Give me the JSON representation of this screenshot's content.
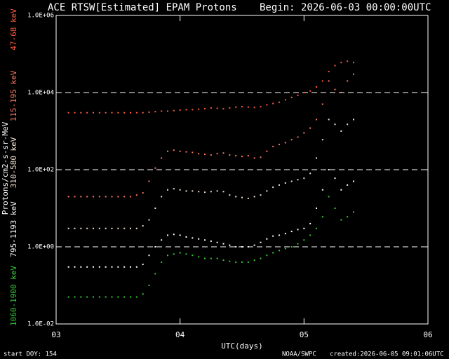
{
  "chart_data": {
    "type": "scatter",
    "title": "ACE RTSW[Estimated] EPAM Protons",
    "subtitle": "Begin: 2026-06-03 00:00:00UTC",
    "x_label": "UTC(days)",
    "y_label": "Protons/cm2-s-sr-MeV",
    "footer_left": "start DOY:  154",
    "footer_mid": "NOAA/SWPC",
    "footer_right": "created:2026-06-05 09:01:06UTC",
    "log_y": true,
    "grid": "dashed",
    "xlim": [
      3,
      6
    ],
    "xticks": [
      {
        "value": 3,
        "label": "03"
      },
      {
        "value": 4,
        "label": "04"
      },
      {
        "value": 5,
        "label": "05"
      },
      {
        "value": 6,
        "label": "06"
      }
    ],
    "ylim": [
      0.01,
      1000000
    ],
    "yticks": [
      {
        "value": 0.01,
        "label": "1.0E-02"
      },
      {
        "value": 1,
        "label": "1.0E+00"
      },
      {
        "value": 100,
        "label": "1.0E+02"
      },
      {
        "value": 10000,
        "label": "1.0E+04"
      },
      {
        "value": 1000000,
        "label": "1.0E+06"
      }
    ],
    "x": [
      3.1,
      3.15,
      3.2,
      3.25,
      3.3,
      3.35,
      3.4,
      3.45,
      3.5,
      3.55,
      3.6,
      3.65,
      3.7,
      3.75,
      3.8,
      3.85,
      3.9,
      3.95,
      4.0,
      4.05,
      4.1,
      4.15,
      4.2,
      4.25,
      4.3,
      4.35,
      4.4,
      4.45,
      4.5,
      4.55,
      4.6,
      4.65,
      4.7,
      4.75,
      4.8,
      4.85,
      4.9,
      4.95,
      5.0,
      5.05,
      5.1,
      5.15,
      5.2,
      5.25,
      5.3,
      5.35,
      5.4
    ],
    "series": [
      {
        "name": "47-68 keV",
        "color": "#ff5a3c",
        "values": [
          3000,
          3000,
          3000,
          3000,
          3000,
          3000,
          3000,
          3000,
          3000,
          3000,
          3000,
          3000,
          3000,
          3100,
          3200,
          3300,
          3300,
          3400,
          3500,
          3600,
          3600,
          3700,
          3800,
          4000,
          3900,
          3800,
          4000,
          4200,
          4300,
          4200,
          4100,
          4300,
          4800,
          5200,
          5600,
          6500,
          7500,
          8500,
          10000,
          11000,
          14000,
          20000,
          35000,
          50000,
          60000,
          65000,
          60000
        ]
      },
      {
        "name": "115-195 keV",
        "color": "#ff7860",
        "values": [
          20,
          20,
          20,
          20,
          20,
          20,
          20,
          20,
          20,
          20,
          20,
          22,
          25,
          50,
          110,
          200,
          300,
          320,
          300,
          290,
          280,
          260,
          250,
          240,
          260,
          270,
          240,
          230,
          220,
          230,
          200,
          210,
          300,
          400,
          450,
          500,
          600,
          700,
          900,
          1200,
          2000,
          5000,
          20000,
          12000,
          10000,
          20000,
          30000
        ]
      },
      {
        "name": "310-580 keV",
        "color": "#f0e0d0",
        "values": [
          3,
          3,
          3,
          3,
          3,
          3,
          3,
          3,
          3,
          3,
          3,
          3,
          3.5,
          5,
          10,
          20,
          30,
          32,
          30,
          28,
          28,
          27,
          26,
          27,
          28,
          27,
          22,
          20,
          19,
          18,
          20,
          22,
          28,
          35,
          40,
          45,
          50,
          55,
          60,
          80,
          200,
          600,
          2000,
          1500,
          1000,
          1500,
          2000
        ]
      },
      {
        "name": "795-1193 keV",
        "color": "#ffffff",
        "values": [
          0.3,
          0.3,
          0.3,
          0.3,
          0.3,
          0.3,
          0.3,
          0.3,
          0.3,
          0.3,
          0.3,
          0.3,
          0.35,
          0.6,
          1,
          1.5,
          2,
          2.1,
          2,
          1.8,
          1.7,
          1.6,
          1.5,
          1.4,
          1.3,
          1.2,
          1.1,
          1.0,
          1.0,
          1.0,
          1.1,
          1.3,
          1.6,
          1.9,
          2,
          2.2,
          2.5,
          2.8,
          3,
          4,
          10,
          30,
          100,
          60,
          30,
          40,
          50
        ]
      },
      {
        "name": "1060-1900 keV",
        "color": "#33cc33",
        "values": [
          0.05,
          0.05,
          0.05,
          0.05,
          0.05,
          0.05,
          0.05,
          0.05,
          0.05,
          0.05,
          0.05,
          0.05,
          0.06,
          0.1,
          0.2,
          0.4,
          0.6,
          0.65,
          0.7,
          0.65,
          0.6,
          0.55,
          0.5,
          0.5,
          0.5,
          0.45,
          0.42,
          0.4,
          0.4,
          0.4,
          0.45,
          0.5,
          0.6,
          0.7,
          0.8,
          0.9,
          1.0,
          1.2,
          1.5,
          2,
          3,
          6,
          20,
          10,
          5,
          6,
          8
        ]
      }
    ]
  }
}
